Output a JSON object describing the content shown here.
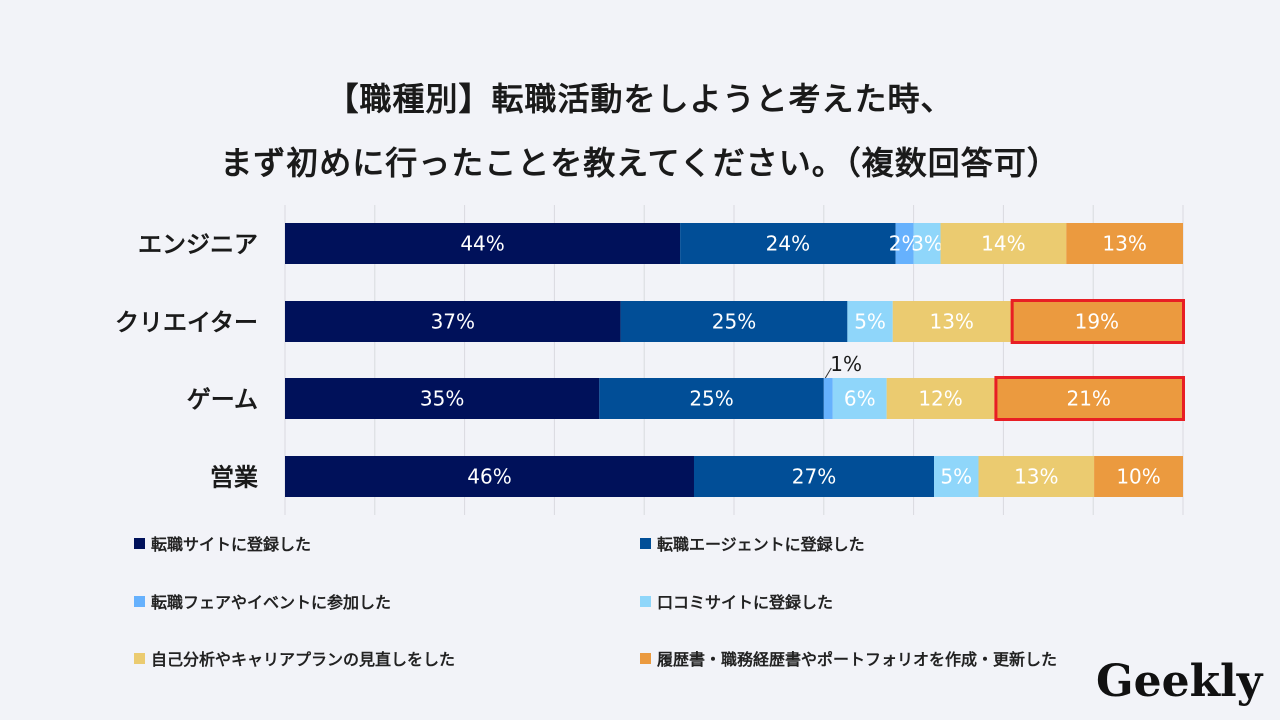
{
  "title_line1": "【職種別】転職活動をしようと考えた時、",
  "title_line2": "まず初めに行ったことを教えてください。（複数回答可）",
  "logo_text": "Geekly",
  "chart_data": {
    "type": "bar",
    "orientation": "horizontal-stacked-100",
    "categories": [
      "エンジニア",
      "クリエイター",
      "ゲーム",
      "営業"
    ],
    "series": [
      {
        "name": "転職サイトに登録した",
        "color": "#00115a",
        "values": [
          44,
          37,
          35,
          46
        ],
        "labels": [
          "44%",
          "37%",
          "35%",
          "46%"
        ]
      },
      {
        "name": "転職エージェントに登録した",
        "color": "#014e97",
        "values": [
          24,
          25,
          25,
          27
        ],
        "labels": [
          "24%",
          "25%",
          "25%",
          "27%"
        ]
      },
      {
        "name": "転職フェアやイベントに参加した",
        "color": "#66b1fd",
        "values": [
          2,
          0,
          1,
          0
        ],
        "labels": [
          "2%",
          "",
          "1%",
          ""
        ]
      },
      {
        "name": "口コミサイトに登録した",
        "color": "#8fd6fa",
        "values": [
          3,
          5,
          6,
          5
        ],
        "labels": [
          "3%",
          "5%",
          "6%",
          "5%"
        ]
      },
      {
        "name": "自己分析やキャリアプランの見直しをした",
        "color": "#ebcb70",
        "values": [
          14,
          13,
          12,
          13
        ],
        "labels": [
          "14%",
          "13%",
          "12%",
          "13%"
        ]
      },
      {
        "name": "履歴書・職務経歴書やポートフォリオを作成・更新した",
        "color": "#eb9a3f",
        "values": [
          13,
          19,
          21,
          10
        ],
        "labels": [
          "13%",
          "19%",
          "21%",
          "10%"
        ]
      }
    ],
    "highlighted": [
      {
        "category": "クリエイター",
        "series": "履歴書・職務経歴書やポートフォリオを作成・更新した"
      },
      {
        "category": "ゲーム",
        "series": "履歴書・職務経歴書やポートフォリオを作成・更新した"
      }
    ],
    "outside_labels": [
      {
        "category": "ゲーム",
        "series": "転職フェアやイベントに参加した",
        "label": "1%"
      }
    ],
    "xlim": [
      0,
      100
    ],
    "grid": true,
    "legend_position": "bottom",
    "highlight_color": "#e81e24"
  }
}
